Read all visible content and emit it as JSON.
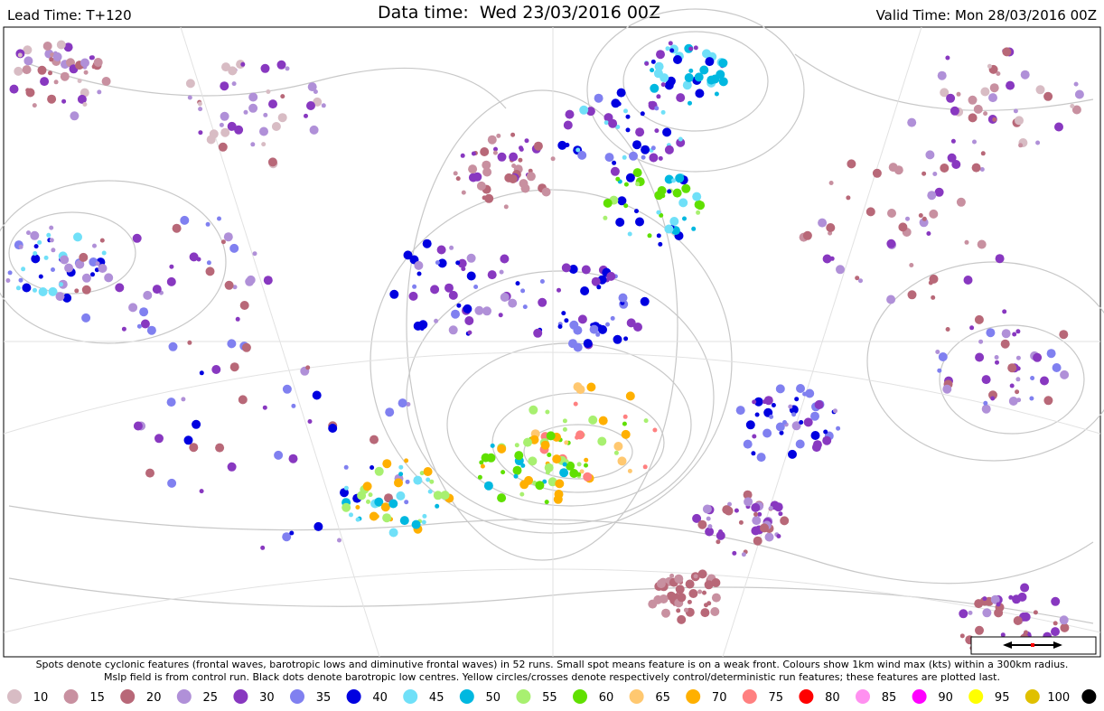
{
  "header": {
    "lead_time": "Lead Time: T+120",
    "data_time": "Data time:  Wed 23/03/2016 00Z",
    "valid_time": "Valid Time: Mon 28/03/2016 00Z"
  },
  "caption": [
    "Spots denote cyclonic features (frontal waves, barotropic lows and diminutive frontal waves) in 52 runs. Small spot means feature is on a weak front. Colours show 1km wind max (kts) within a 300km radius.",
    "Mslp field is from control run. Black dots denote barotropic low centres. Yellow circles/crosses denote respectively control/deterministic run features; these features are plotted last."
  ],
  "legend": [
    {
      "label": "10",
      "color": "#d8bcc4"
    },
    {
      "label": "15",
      "color": "#c890a0"
    },
    {
      "label": "20",
      "color": "#b86878"
    },
    {
      "label": "25",
      "color": "#b090d8"
    },
    {
      "label": "30",
      "color": "#8838c0"
    },
    {
      "label": "35",
      "color": "#8080f0"
    },
    {
      "label": "40",
      "color": "#0000e0"
    },
    {
      "label": "45",
      "color": "#70e0f8"
    },
    {
      "label": "50",
      "color": "#00b8e0"
    },
    {
      "label": "55",
      "color": "#a8f070"
    },
    {
      "label": "60",
      "color": "#60e000"
    },
    {
      "label": "65",
      "color": "#ffc870"
    },
    {
      "label": "70",
      "color": "#ffb000"
    },
    {
      "label": "75",
      "color": "#ff8080"
    },
    {
      "label": "80",
      "color": "#ff0000"
    },
    {
      "label": "85",
      "color": "#ff90f0"
    },
    {
      "label": "90",
      "color": "#ff00ff"
    },
    {
      "label": "95",
      "color": "#ffff00"
    },
    {
      "label": "100",
      "color": "#e0c000"
    },
    {
      "color": "#000000"
    }
  ]
}
